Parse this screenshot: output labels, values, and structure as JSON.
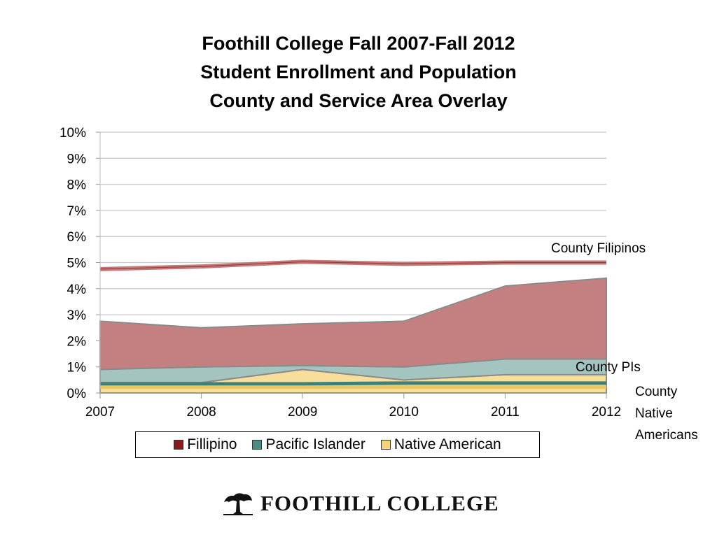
{
  "chart_data": {
    "type": "area",
    "title": [
      "Foothill College Fall 2007-Fall 2012",
      "Student Enrollment and Population",
      "County and Service Area Overlay"
    ],
    "x": [
      "2007",
      "2008",
      "2009",
      "2010",
      "2011",
      "2012"
    ],
    "y_ticks": [
      "0%",
      "1%",
      "2%",
      "3%",
      "4%",
      "5%",
      "6%",
      "7%",
      "8%",
      "9%",
      "10%"
    ],
    "ylim": [
      0,
      10
    ],
    "stacked": true,
    "series": [
      {
        "name": "Native American",
        "color": "#f7de9a",
        "values": [
          0.4,
          0.4,
          0.9,
          0.5,
          0.7,
          0.7
        ]
      },
      {
        "name": "Pacific Islander",
        "color": "#a3c4bf",
        "values": [
          0.5,
          0.6,
          0.15,
          0.5,
          0.6,
          0.6
        ]
      },
      {
        "name": "Fillipino",
        "color": "#c48080",
        "values": [
          1.85,
          1.5,
          1.6,
          1.75,
          2.8,
          3.1
        ]
      }
    ],
    "legend_labels": [
      "Fillipino",
      "Pacific Islander",
      "Native American"
    ],
    "legend_colors": [
      "#8b1a1a",
      "#4c8c86",
      "#f4d478"
    ],
    "overlay_lines": [
      {
        "label": "County Filipinos",
        "color": "#c47a7a",
        "values": [
          4.75,
          4.85,
          5.03,
          4.95,
          5.0,
          5.0
        ]
      },
      {
        "label": "County PIs",
        "color": "#3f7f7a",
        "values": [
          0.35,
          0.35,
          0.35,
          0.38,
          0.38,
          0.38
        ]
      },
      {
        "label": "County Native Americans",
        "color": "#e8c660",
        "values": [
          0.22,
          0.22,
          0.22,
          0.22,
          0.22,
          0.22
        ]
      }
    ],
    "annotations": [
      {
        "text": [
          "County Filipinos"
        ]
      },
      {
        "text": [
          "County PIs"
        ]
      },
      {
        "text": [
          "County",
          "Native",
          "Americans"
        ]
      }
    ],
    "grid": true
  },
  "logo": {
    "text": "FOOTHILL  COLLEGE",
    "icon": "tree-icon"
  }
}
